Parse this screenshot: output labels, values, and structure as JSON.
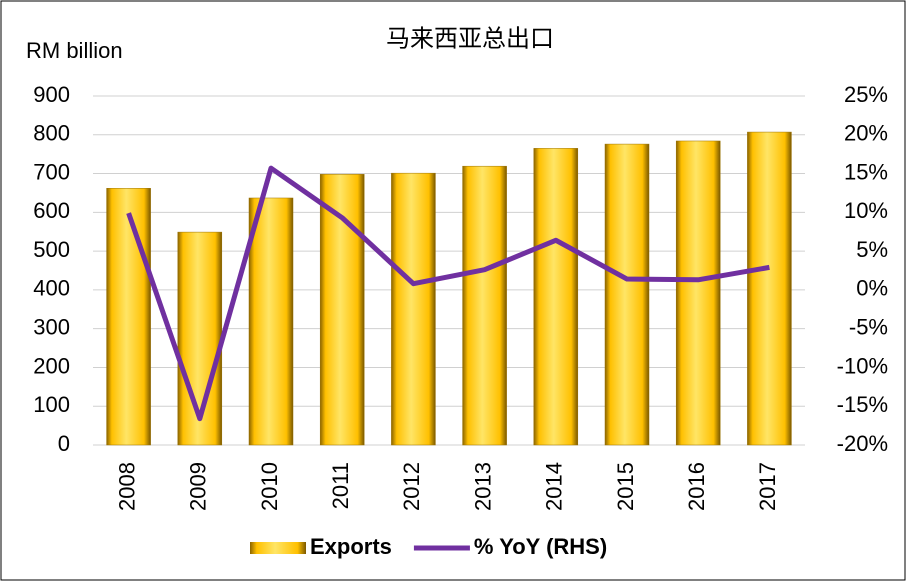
{
  "chart_data": {
    "type": "bar",
    "title": "马来西亚总出口",
    "y_label": "RM billion",
    "categories": [
      "2008",
      "2009",
      "2010",
      "2011",
      "2012",
      "2013",
      "2014",
      "2015",
      "2016",
      "2017"
    ],
    "series": [
      {
        "name": "Exports",
        "type": "bar",
        "color": "#ffc000",
        "values": [
          662,
          549,
          637,
          698,
          701,
          719,
          765,
          776,
          784,
          807
        ]
      },
      {
        "name": "% YoY (RHS)",
        "type": "line",
        "axis": "y2",
        "color": "#7030a0",
        "values": [
          9.9,
          -16.6,
          15.7,
          9.3,
          0.8,
          2.6,
          6.4,
          1.4,
          1.3,
          2.9
        ]
      }
    ],
    "ylim": [
      0,
      900
    ],
    "yticks": [
      0,
      100,
      200,
      300,
      400,
      500,
      600,
      700,
      800,
      900
    ],
    "y2lim": [
      -20,
      25
    ],
    "y2ticks": [
      {
        "value": -20,
        "label": "-20%"
      },
      {
        "value": -15,
        "label": "-15%"
      },
      {
        "value": -10,
        "label": "-10%"
      },
      {
        "value": -5,
        "label": "-5%"
      },
      {
        "value": 0,
        "label": "0%"
      },
      {
        "value": 5,
        "label": "5%"
      },
      {
        "value": 10,
        "label": "10%"
      },
      {
        "value": 15,
        "label": "15%"
      },
      {
        "value": 20,
        "label": "20%"
      },
      {
        "value": 25,
        "label": "25%"
      }
    ],
    "grid": true,
    "legend": "bottom"
  }
}
